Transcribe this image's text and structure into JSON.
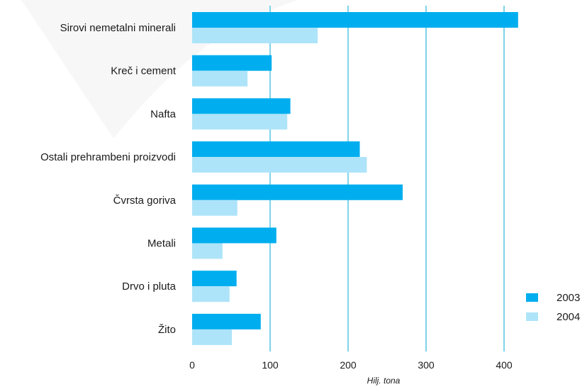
{
  "chart_data": {
    "type": "bar",
    "orientation": "horizontal",
    "categories": [
      "Sirovi nemetalni minerali",
      "Kreč i cement",
      "Nafta",
      "Ostali prehrambeni proizvodi",
      "Čvrsta goriva",
      "Metali",
      "Drvo i pluta",
      "Žito"
    ],
    "series": [
      {
        "name": "2003",
        "color": "#00aeef",
        "values": [
          418,
          102,
          126,
          215,
          270,
          108,
          57,
          88
        ]
      },
      {
        "name": "2004",
        "color": "#aee4f9",
        "values": [
          161,
          71,
          122,
          224,
          58,
          39,
          48,
          51
        ]
      }
    ],
    "xlim": [
      0,
      420
    ],
    "xticks": [
      0,
      100,
      200,
      300,
      400
    ],
    "xtick_labels": [
      "0",
      "100",
      "200",
      "300",
      "400"
    ],
    "xlabel": "Hilj. tona",
    "grid": true,
    "gridline_color": "#7fd3ea",
    "legend_position": "bottom-right"
  }
}
